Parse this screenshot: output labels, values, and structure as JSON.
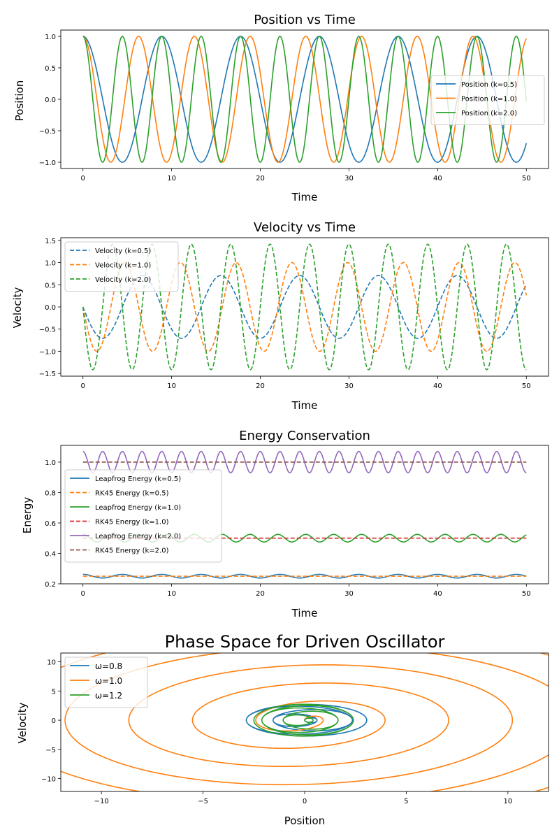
{
  "colors": {
    "c0": "#1f77b4",
    "c1": "#ff7f0e",
    "c2": "#2ca02c",
    "c3": "#d62728",
    "c4": "#9467bd",
    "c5": "#8c564b"
  },
  "chart_data": [
    {
      "type": "line",
      "title": "Position vs Time",
      "xlabel": "Time",
      "ylabel": "Position",
      "xlim": [
        -2.5,
        52.5
      ],
      "ylim": [
        -1.1,
        1.1
      ],
      "xticks": [
        0,
        10,
        20,
        30,
        40,
        50
      ],
      "yticks": [
        -1.0,
        -0.5,
        0.0,
        0.5,
        1.0
      ],
      "ytick_labels": [
        "−1.0",
        "−0.5",
        "0.0",
        "0.5",
        "1.0"
      ],
      "legend": "center-right",
      "grid": false,
      "series": [
        {
          "name": "Position (k=0.5)",
          "color": "#1f77b4",
          "style": "solid",
          "func": "cos",
          "omega": 0.7071,
          "amp": 1.0,
          "t_range": [
            0,
            50
          ]
        },
        {
          "name": "Position (k=1.0)",
          "color": "#ff7f0e",
          "style": "solid",
          "func": "cos",
          "omega": 1.0,
          "amp": 1.0,
          "t_range": [
            0,
            50
          ]
        },
        {
          "name": "Position (k=2.0)",
          "color": "#2ca02c",
          "style": "solid",
          "func": "cos",
          "omega": 1.4142,
          "amp": 1.0,
          "t_range": [
            0,
            50
          ]
        }
      ]
    },
    {
      "type": "line",
      "title": "Velocity vs Time",
      "xlabel": "Time",
      "ylabel": "Velocity",
      "xlim": [
        -2.5,
        52.5
      ],
      "ylim": [
        -1.56,
        1.56
      ],
      "xticks": [
        0,
        10,
        20,
        30,
        40,
        50
      ],
      "yticks": [
        -1.5,
        -1.0,
        -0.5,
        0.0,
        0.5,
        1.0,
        1.5
      ],
      "ytick_labels": [
        "−1.5",
        "−1.0",
        "−0.5",
        "0.0",
        "0.5",
        "1.0",
        "1.5"
      ],
      "legend": "top-left",
      "grid": false,
      "series": [
        {
          "name": "Velocity (k=0.5)",
          "color": "#1f77b4",
          "style": "dashed",
          "func": "-sin",
          "omega": 0.7071,
          "amp": 0.7071,
          "t_range": [
            0,
            50
          ]
        },
        {
          "name": "Velocity (k=1.0)",
          "color": "#ff7f0e",
          "style": "dashed",
          "func": "-sin",
          "omega": 1.0,
          "amp": 1.0,
          "t_range": [
            0,
            50
          ]
        },
        {
          "name": "Velocity (k=2.0)",
          "color": "#2ca02c",
          "style": "dashed",
          "func": "-sin",
          "omega": 1.4142,
          "amp": 1.4142,
          "t_range": [
            0,
            50
          ]
        }
      ]
    },
    {
      "type": "line",
      "title": "Energy Conservation",
      "xlabel": "Time",
      "ylabel": "Energy",
      "xlim": [
        -2.5,
        52.5
      ],
      "ylim": [
        0.2,
        1.11
      ],
      "xticks": [
        0,
        10,
        20,
        30,
        40,
        50
      ],
      "yticks": [
        0.2,
        0.4,
        0.6,
        0.8,
        1.0
      ],
      "ytick_labels": [
        "0.2",
        "0.4",
        "0.6",
        "0.8",
        "1.0"
      ],
      "legend": "center-left",
      "grid": false,
      "series": [
        {
          "name": "Leapfrog Energy (k=0.5)",
          "color": "#1f77b4",
          "style": "solid",
          "func": "energy",
          "mean": 0.25,
          "osc": 0.012,
          "omega": 1.4142,
          "t_range": [
            0,
            50
          ]
        },
        {
          "name": "RK45 Energy (k=0.5)",
          "color": "#ff7f0e",
          "style": "dashed",
          "func": "const",
          "value": 0.25,
          "t_range": [
            0,
            50
          ]
        },
        {
          "name": "Leapfrog Energy (k=1.0)",
          "color": "#2ca02c",
          "style": "solid",
          "func": "energy",
          "mean": 0.5,
          "osc": 0.025,
          "omega": 2.0,
          "t_range": [
            0,
            50
          ]
        },
        {
          "name": "RK45 Energy (k=1.0)",
          "color": "#d62728",
          "style": "dashed",
          "func": "const",
          "value": 0.5,
          "t_range": [
            0,
            50
          ]
        },
        {
          "name": "Leapfrog Energy (k=2.0)",
          "color": "#9467bd",
          "style": "solid",
          "func": "energy",
          "mean": 1.0,
          "osc": 0.07,
          "omega": 2.8284,
          "t_range": [
            0,
            50
          ]
        },
        {
          "name": "RK45 Energy (k=2.0)",
          "color": "#8c564b",
          "style": "dashed",
          "func": "const",
          "value": 1.0,
          "t_range": [
            0,
            50
          ]
        }
      ]
    },
    {
      "type": "line",
      "title": "Phase Space for Driven Oscillator",
      "xlabel": "Position",
      "ylabel": "Velocity",
      "xlim": [
        -12.0,
        12.0
      ],
      "ylim": [
        -12.2,
        11.5
      ],
      "xticks": [
        -10,
        -5,
        0,
        5,
        10
      ],
      "xtick_labels": [
        "−10",
        "−5",
        "0",
        "5",
        "10"
      ],
      "yticks": [
        -10,
        -5,
        0,
        5,
        10
      ],
      "ytick_labels": [
        "−10",
        "−5",
        "0",
        "5",
        "10"
      ],
      "legend": "top-left",
      "grid": false,
      "series": [
        {
          "name": "ω=0.8",
          "color": "#1f77b4",
          "style": "solid",
          "func": "phase-beat",
          "drive": 0.8,
          "amp_max": 2.5,
          "t_range": [
            0,
            50
          ]
        },
        {
          "name": "ω=1.0",
          "color": "#ff7f0e",
          "style": "solid",
          "func": "phase-resonant",
          "drive": 1.0,
          "t_range": [
            0,
            50
          ]
        },
        {
          "name": "ω=1.2",
          "color": "#2ca02c",
          "style": "solid",
          "func": "phase-beat",
          "drive": 1.2,
          "amp_max": 2.9,
          "t_range": [
            0,
            50
          ]
        }
      ]
    }
  ]
}
